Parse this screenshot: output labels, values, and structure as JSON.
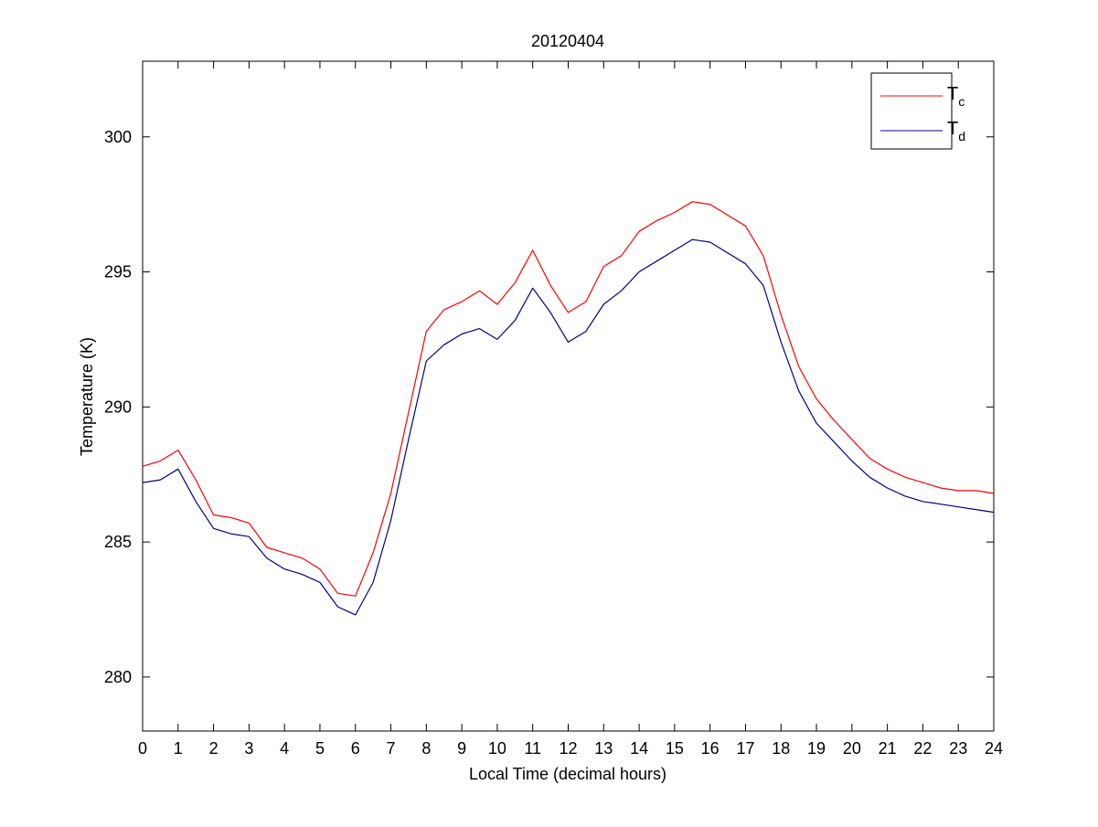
{
  "chart_data": {
    "type": "line",
    "title": "20120404",
    "xlabel": "Local Time (decimal hours)",
    "ylabel": "Temperature (K)",
    "xlim": [
      0,
      24
    ],
    "ylim": [
      278,
      302.8
    ],
    "xticks": [
      0,
      1,
      2,
      3,
      4,
      5,
      6,
      7,
      8,
      9,
      10,
      11,
      12,
      13,
      14,
      15,
      16,
      17,
      18,
      19,
      20,
      21,
      22,
      23,
      24
    ],
    "yticks": [
      280,
      285,
      290,
      295,
      300
    ],
    "grid": false,
    "legend_position": "top-right",
    "x": [
      0,
      0.5,
      1,
      1.5,
      2,
      2.5,
      3,
      3.5,
      4,
      4.5,
      5,
      5.5,
      6,
      6.5,
      7,
      7.5,
      8,
      8.5,
      9,
      9.5,
      10,
      10.5,
      11,
      11.5,
      12,
      12.5,
      13,
      13.5,
      14,
      14.5,
      15,
      15.5,
      16,
      16.5,
      17,
      17.5,
      18,
      18.5,
      19,
      19.5,
      20,
      20.5,
      21,
      21.5,
      22,
      22.5,
      23,
      23.5,
      24
    ],
    "series": [
      {
        "name": "T_c",
        "color": "#ff0000",
        "values": [
          287.8,
          288.0,
          288.4,
          287.3,
          286.0,
          285.9,
          285.7,
          284.8,
          284.6,
          284.4,
          284.0,
          283.1,
          283.0,
          284.6,
          286.8,
          289.8,
          292.8,
          293.6,
          293.9,
          294.3,
          293.8,
          294.6,
          295.8,
          294.5,
          293.5,
          293.9,
          295.2,
          295.6,
          296.5,
          296.9,
          297.2,
          297.6,
          297.5,
          297.1,
          296.7,
          295.6,
          293.4,
          291.5,
          290.3,
          289.5,
          288.8,
          288.1,
          287.7,
          287.4,
          287.2,
          287.0,
          286.9,
          286.9,
          286.8
        ]
      },
      {
        "name": "T_d",
        "color": "#00008b",
        "values": [
          287.2,
          287.3,
          287.7,
          286.5,
          285.5,
          285.3,
          285.2,
          284.4,
          284.0,
          283.8,
          283.5,
          282.6,
          282.3,
          283.5,
          285.8,
          288.8,
          291.7,
          292.3,
          292.7,
          292.9,
          292.5,
          293.2,
          294.4,
          293.5,
          292.4,
          292.8,
          293.8,
          294.3,
          295.0,
          295.4,
          295.8,
          296.2,
          296.1,
          295.7,
          295.3,
          294.5,
          292.4,
          290.6,
          289.4,
          288.7,
          288.0,
          287.4,
          287.0,
          286.7,
          286.5,
          286.4,
          286.3,
          286.2,
          286.1
        ]
      }
    ]
  },
  "legend": {
    "entries": [
      {
        "main": "T",
        "sub": "c"
      },
      {
        "main": "T",
        "sub": "d"
      }
    ]
  }
}
